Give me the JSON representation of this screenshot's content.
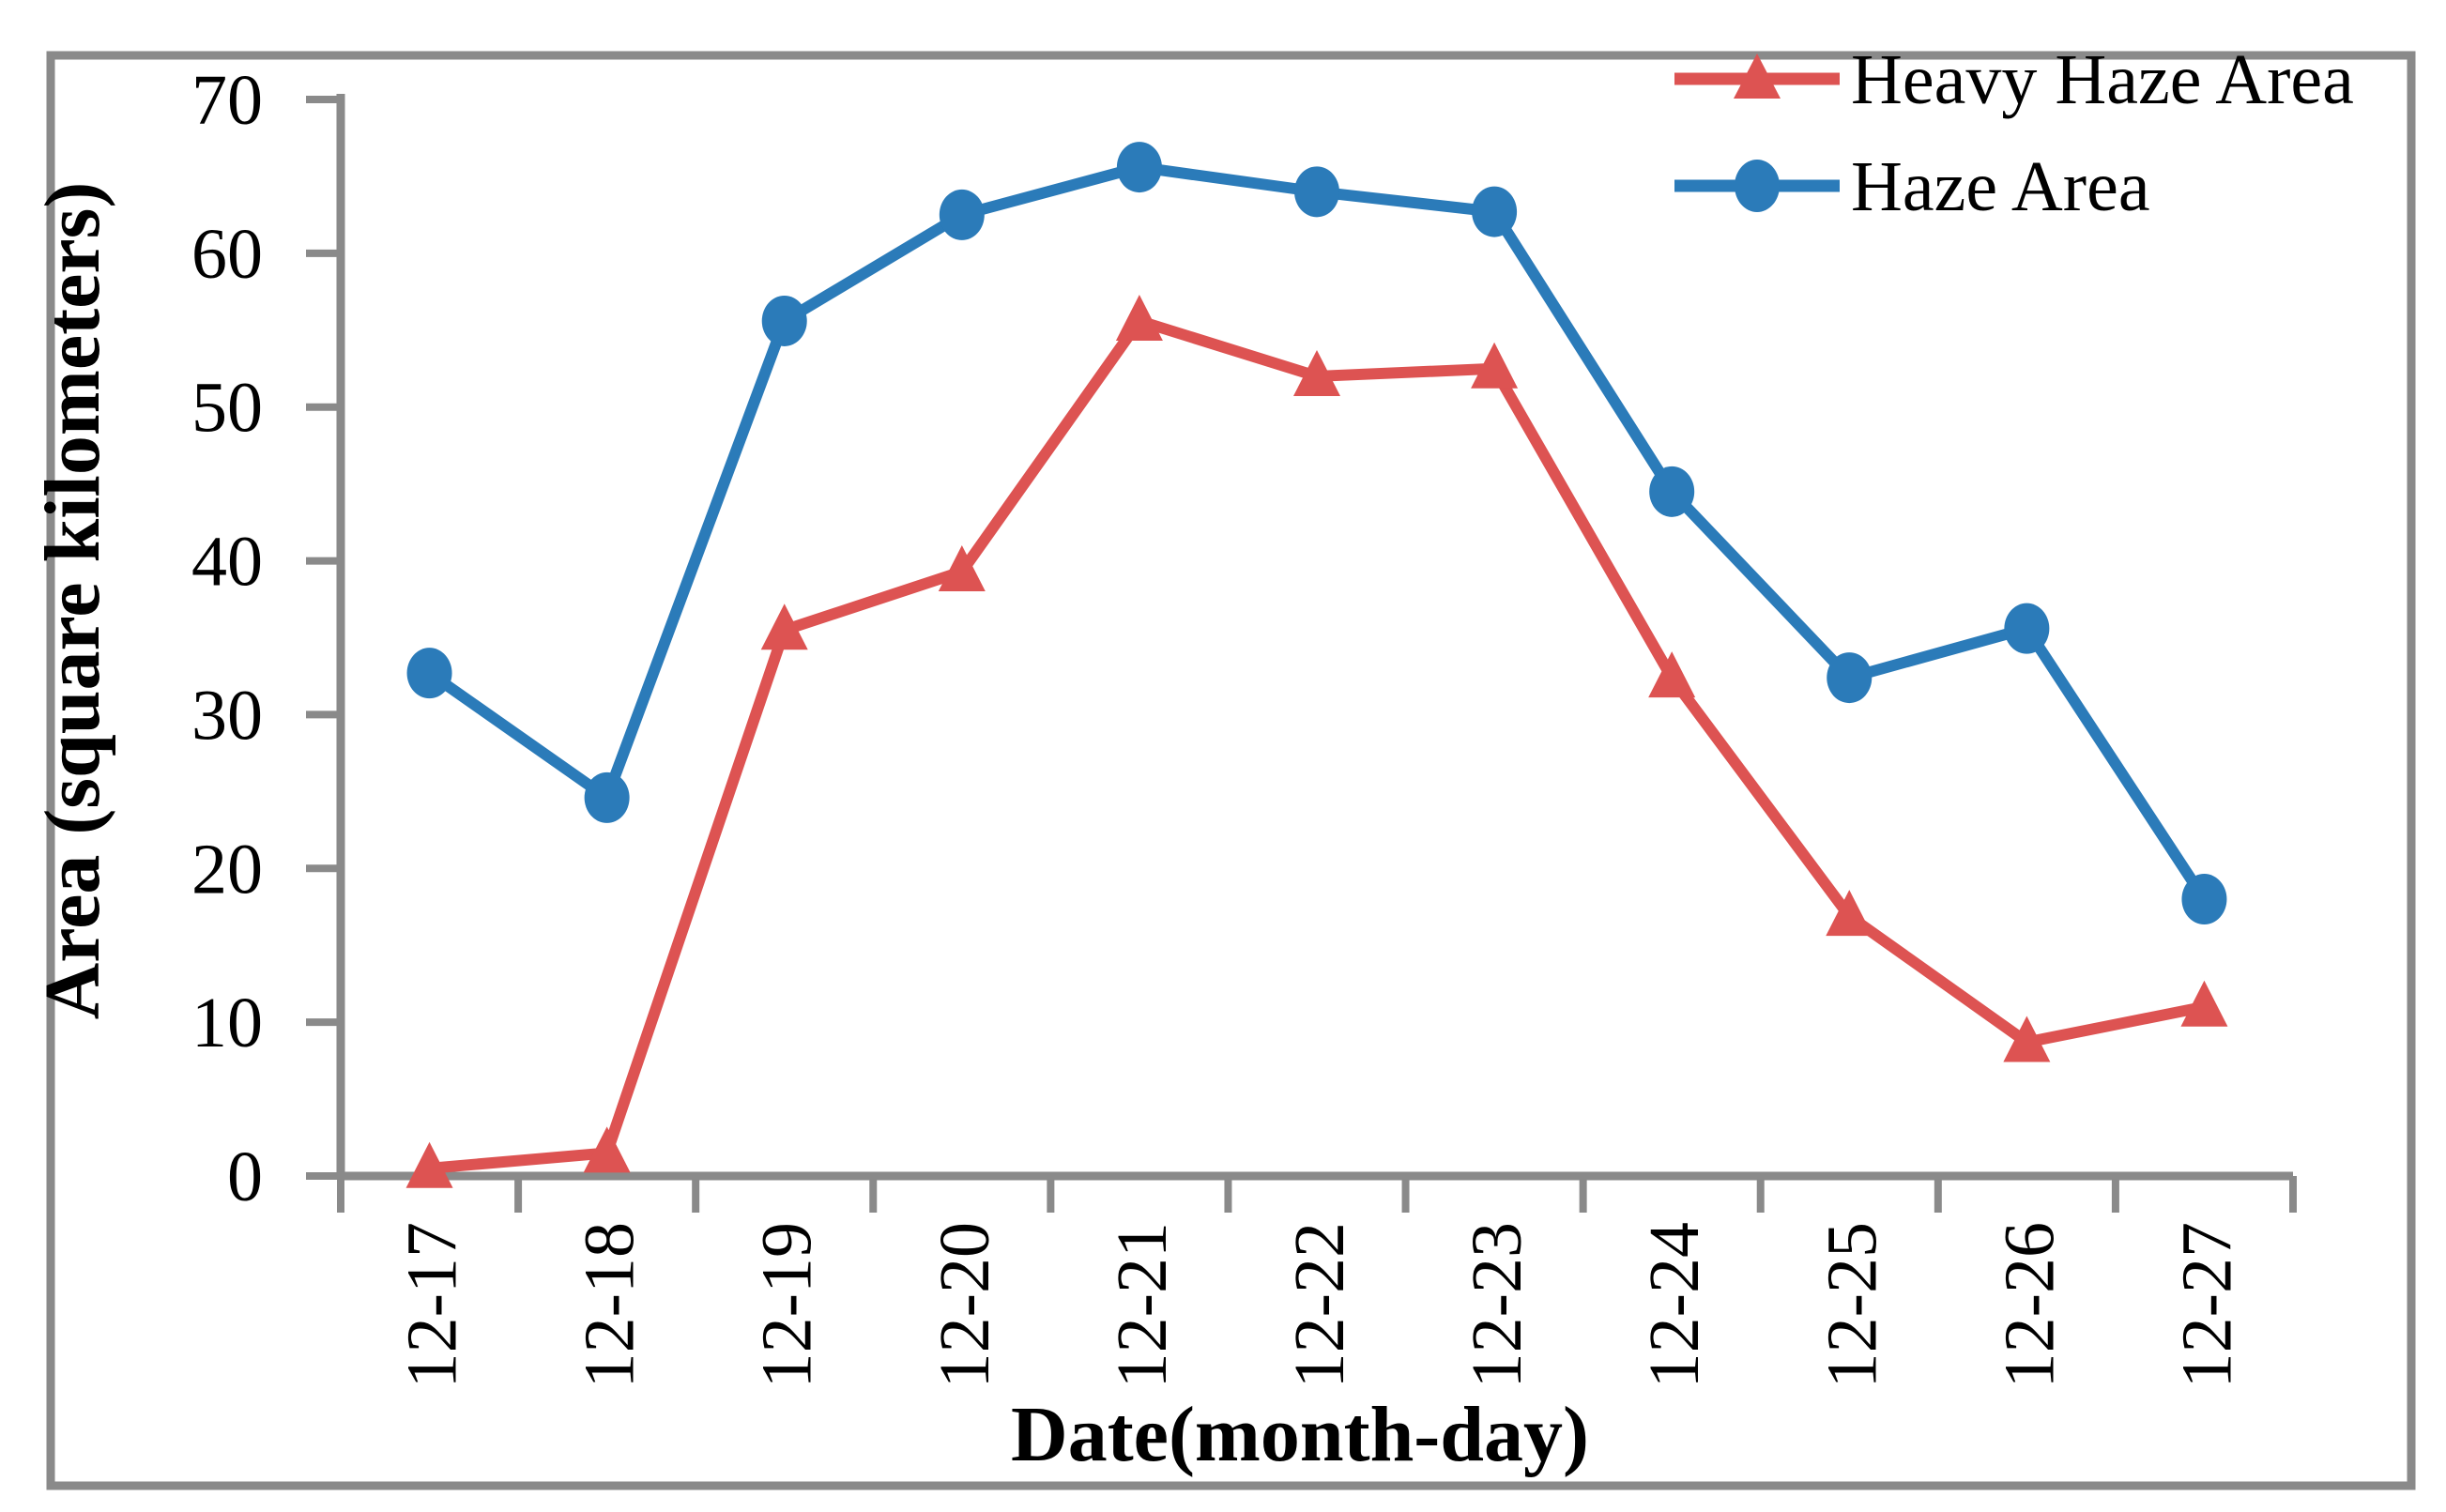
{
  "figure": {
    "border_color": "#8a8a8a",
    "axis_color": "#8a8a8a",
    "background": "#ffffff",
    "text_color": "#000000"
  },
  "chart_data": {
    "type": "line",
    "title": "",
    "xlabel": "Date(month-day)",
    "ylabel": "Area (square kilometers)",
    "categories": [
      "12-17",
      "12-18",
      "12-19",
      "12-20",
      "12-21",
      "12-22",
      "12-23",
      "12-24",
      "12-25",
      "12-26",
      "12-27"
    ],
    "ylim": [
      0,
      70
    ],
    "yticks": [
      0,
      10,
      20,
      30,
      40,
      50,
      60,
      70
    ],
    "grid": false,
    "legend_position": "top-right",
    "series": [
      {
        "name": "Heavy Haze Area",
        "marker": "triangle",
        "color": "#dd5352",
        "values": [
          0.5,
          1.5,
          35.5,
          39.3,
          55.6,
          52.0,
          52.5,
          32.4,
          16.9,
          8.7,
          11.0
        ]
      },
      {
        "name": "Haze Area",
        "marker": "circle",
        "color": "#2b7bb9",
        "values": [
          32.7,
          24.6,
          55.6,
          62.5,
          65.6,
          64.0,
          62.7,
          44.5,
          32.4,
          35.6,
          18.0
        ]
      }
    ]
  }
}
